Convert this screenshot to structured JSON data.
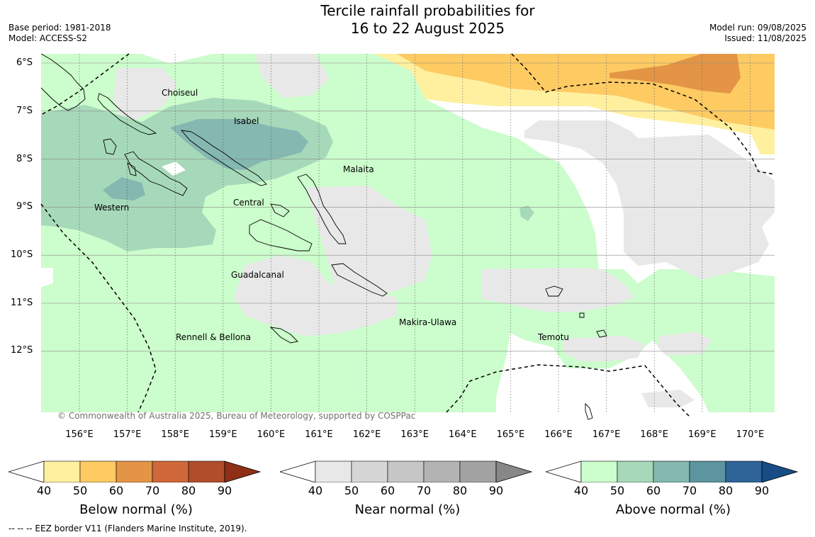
{
  "header": {
    "title_line1": "Tercile rainfall probabilities for",
    "title_line2": "16 to 22 August 2025",
    "base_period": "Base period: 1981-2018",
    "model": "Model: ACCESS-S2",
    "model_run": "Model run: 09/08/2025",
    "issued": "Issued: 11/08/2025"
  },
  "map": {
    "lat_labels": [
      "6°S",
      "7°S",
      "8°S",
      "9°S",
      "10°S",
      "11°S",
      "12°S"
    ],
    "lon_labels": [
      "156°E",
      "157°E",
      "158°E",
      "159°E",
      "160°E",
      "161°E",
      "162°E",
      "163°E",
      "164°E",
      "165°E",
      "166°E",
      "167°E",
      "168°E",
      "169°E",
      "170°E"
    ],
    "regions": [
      "Choiseul",
      "Isabel",
      "Malaita",
      "Western",
      "Central",
      "Guadalcanal",
      "Makira-Ulawa",
      "Rennell & Bellona",
      "Temotu"
    ],
    "copyright": "© Commonwealth of Australia 2025, Bureau of Meteorology, supported by COSPPac"
  },
  "colorbars": [
    {
      "title": "Below normal (%)",
      "ticks": [
        "40",
        "50",
        "60",
        "70",
        "80",
        "90"
      ],
      "colors": [
        "#fff0a0",
        "#fecb63",
        "#e39545",
        "#d1683a",
        "#b14d2a",
        "#8e2f17"
      ]
    },
    {
      "title": "Near normal (%)",
      "ticks": [
        "40",
        "50",
        "60",
        "70",
        "80",
        "90"
      ],
      "colors": [
        "#e8e8e8",
        "#d6d6d6",
        "#c6c6c6",
        "#b3b3b3",
        "#a3a3a3",
        "#878787"
      ]
    },
    {
      "title": "Above normal (%)",
      "ticks": [
        "40",
        "50",
        "60",
        "70",
        "80",
        "90"
      ],
      "colors": [
        "#ccfdcc",
        "#a6d9b9",
        "#84b8b0",
        "#5c949f",
        "#2f6498",
        "#174c85"
      ]
    }
  ],
  "footnote": "--  --  -- EEZ border V11 (Flanders Marine Institute, 2019)."
}
